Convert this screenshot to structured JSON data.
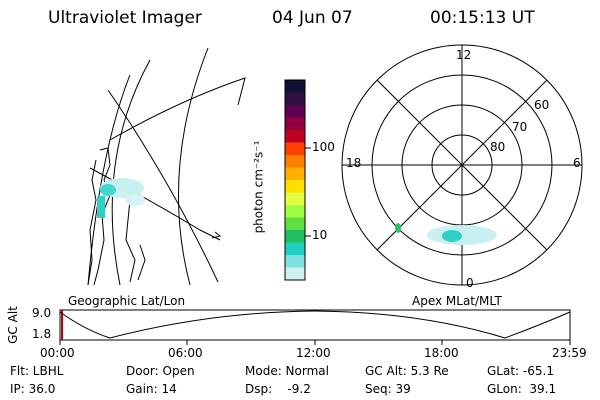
{
  "header": {
    "instrument": "Ultraviolet Imager",
    "date": "04 Jun 07",
    "time": "00:15:13 UT"
  },
  "colorbar": {
    "label": "photon cm⁻²s⁻¹",
    "ticks": [
      "100",
      "10"
    ],
    "colors": [
      "#101030",
      "#301040",
      "#600050",
      "#900040",
      "#c00020",
      "#ff4000",
      "#ff8000",
      "#ffb000",
      "#ffe000",
      "#e0ff40",
      "#a0ff40",
      "#60e040",
      "#20c060",
      "#20d0c0",
      "#80e0e0",
      "#d0f0f0"
    ]
  },
  "geo_panel": {
    "caption": "Geographic Lat/Lon"
  },
  "polar_panel": {
    "caption": "Apex MLat/MLT",
    "mlt_labels": {
      "top": "12",
      "bottom": "0",
      "left": "18",
      "right": "6"
    },
    "lat_labels": [
      "60",
      "70",
      "80"
    ]
  },
  "alt_plot": {
    "axis_label": "GC Alt",
    "y_ticks": [
      "9.0",
      "1.8"
    ],
    "x_ticks": [
      "00:00",
      "06:00",
      "12:00",
      "18:00",
      "23:59"
    ]
  },
  "info": {
    "flt": "Flt: LBHL",
    "ip": "IP: 36.0",
    "door": "Door: Open",
    "gain": "Gain: 14",
    "mode": "Mode: Normal",
    "dsp": "Dsp:    -9.2",
    "gc_alt": "GC Alt: 5.3 Re",
    "seq": "Seq: 39",
    "glat": "GLat: -65.1",
    "glon": "GLon:  39.1"
  }
}
